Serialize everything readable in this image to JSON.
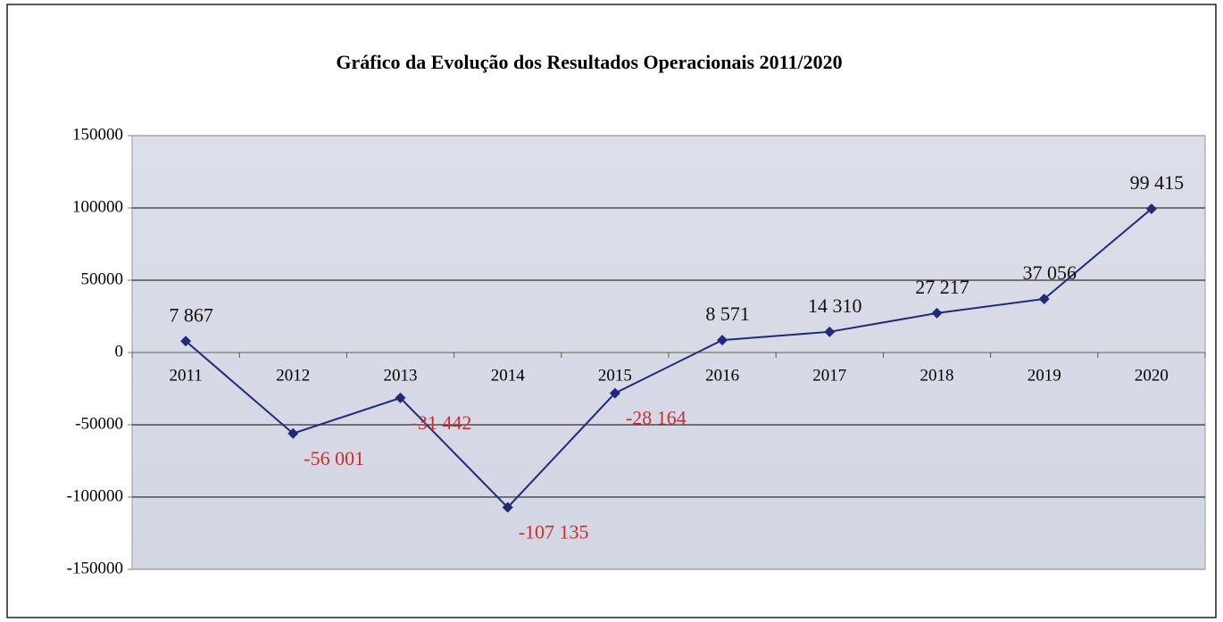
{
  "chart_data": {
    "type": "line",
    "title": "Gráfico da Evolução dos Resultados Operacionais 2011/2020",
    "categories": [
      "2011",
      "2012",
      "2013",
      "2014",
      "2015",
      "2016",
      "2017",
      "2018",
      "2019",
      "2020"
    ],
    "series": [
      {
        "name": "Resultados Operacionais",
        "color": "#1f2a7a",
        "values": [
          7867,
          -56001,
          -31442,
          -107135,
          -28164,
          8571,
          14310,
          27217,
          37056,
          99415
        ],
        "value_labels": [
          "7 867",
          "-56 001",
          "-31 442",
          "-107 135",
          "-28 164",
          "8 571",
          "14 310",
          "27 217",
          "37 056",
          "99 415"
        ]
      }
    ],
    "ylim": [
      -150000,
      150000
    ],
    "yticks": [
      -150000,
      -100000,
      -50000,
      0,
      50000,
      100000,
      150000
    ],
    "grid": true,
    "legend": false,
    "positive_label_color": "#111111",
    "negative_label_color": "#d42a2a"
  }
}
